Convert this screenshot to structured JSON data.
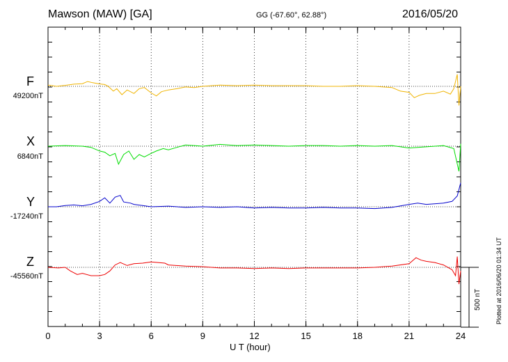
{
  "header": {
    "station": "Mawson (MAW)  [GA]",
    "coords": "GG (-67.60°,  62.88°)",
    "date": "2016/05/20"
  },
  "plotted_note": "Plotted at 2016/06/20 01:34 UT",
  "scale_note": "500 nT",
  "chart_data": {
    "type": "line",
    "xlabel": "U T (hour)",
    "xlim": [
      0,
      24
    ],
    "x_ticks": [
      0,
      3,
      6,
      9,
      12,
      15,
      18,
      21,
      24
    ],
    "x_tick_labels": [
      "0",
      "3",
      "6",
      "9",
      "12",
      "15",
      "18",
      "21",
      "24"
    ],
    "scale_bar_nT": 500,
    "series": [
      {
        "name": "F",
        "baseline_label": "49200nT",
        "color": "#f0b400",
        "values": [
          [
            0,
            10
          ],
          [
            0.5,
            0
          ],
          [
            1,
            8
          ],
          [
            1.5,
            18
          ],
          [
            2,
            22
          ],
          [
            2.3,
            40
          ],
          [
            2.6,
            30
          ],
          [
            3,
            20
          ],
          [
            3.3,
            15
          ],
          [
            3.5,
            0
          ],
          [
            3.8,
            -40
          ],
          [
            4,
            -20
          ],
          [
            4.3,
            -70
          ],
          [
            4.6,
            -30
          ],
          [
            5,
            -60
          ],
          [
            5.3,
            -20
          ],
          [
            5.6,
            -10
          ],
          [
            6,
            -55
          ],
          [
            6.3,
            -80
          ],
          [
            6.6,
            -45
          ],
          [
            7,
            -30
          ],
          [
            7.5,
            -20
          ],
          [
            8,
            -5
          ],
          [
            8.5,
            -10
          ],
          [
            9,
            0
          ],
          [
            10,
            10
          ],
          [
            11,
            5
          ],
          [
            12,
            10
          ],
          [
            13,
            5
          ],
          [
            14,
            5
          ],
          [
            15,
            5
          ],
          [
            16,
            0
          ],
          [
            17,
            0
          ],
          [
            18,
            5
          ],
          [
            19,
            0
          ],
          [
            20,
            -10
          ],
          [
            20.5,
            -40
          ],
          [
            21,
            -50
          ],
          [
            21.3,
            -95
          ],
          [
            21.6,
            -75
          ],
          [
            22,
            -60
          ],
          [
            22.5,
            -60
          ],
          [
            23,
            -40
          ],
          [
            23.4,
            -65
          ],
          [
            23.6,
            -20
          ],
          [
            23.8,
            100
          ],
          [
            23.9,
            -160
          ],
          [
            24,
            0
          ]
        ]
      },
      {
        "name": "X",
        "baseline_label": "6840nT",
        "color": "#00dd00",
        "values": [
          [
            0,
            0
          ],
          [
            1,
            5
          ],
          [
            2,
            0
          ],
          [
            2.5,
            -10
          ],
          [
            3,
            -40
          ],
          [
            3.3,
            -50
          ],
          [
            3.6,
            -80
          ],
          [
            3.9,
            -60
          ],
          [
            4.1,
            -150
          ],
          [
            4.4,
            -70
          ],
          [
            4.7,
            -40
          ],
          [
            5,
            -110
          ],
          [
            5.3,
            -70
          ],
          [
            5.6,
            -90
          ],
          [
            6,
            -60
          ],
          [
            6.3,
            -40
          ],
          [
            6.7,
            -20
          ],
          [
            7,
            -30
          ],
          [
            7.5,
            -10
          ],
          [
            8,
            10
          ],
          [
            9,
            0
          ],
          [
            10,
            15
          ],
          [
            11,
            5
          ],
          [
            12,
            10
          ],
          [
            13,
            5
          ],
          [
            14,
            0
          ],
          [
            15,
            5
          ],
          [
            16,
            5
          ],
          [
            17,
            0
          ],
          [
            18,
            5
          ],
          [
            19,
            0
          ],
          [
            20,
            5
          ],
          [
            21,
            -15
          ],
          [
            22,
            -5
          ],
          [
            23,
            5
          ],
          [
            23.6,
            -20
          ],
          [
            23.9,
            -210
          ],
          [
            24,
            20
          ]
        ]
      },
      {
        "name": "Y",
        "baseline_label": "-17240nT",
        "color": "#0000cc",
        "values": [
          [
            0,
            0
          ],
          [
            0.5,
            0
          ],
          [
            1,
            10
          ],
          [
            1.5,
            15
          ],
          [
            2,
            8
          ],
          [
            2.5,
            20
          ],
          [
            3,
            45
          ],
          [
            3.3,
            75
          ],
          [
            3.6,
            30
          ],
          [
            3.9,
            80
          ],
          [
            4.2,
            95
          ],
          [
            4.4,
            40
          ],
          [
            4.8,
            30
          ],
          [
            5,
            20
          ],
          [
            5.5,
            10
          ],
          [
            6,
            0
          ],
          [
            7,
            5
          ],
          [
            8,
            -5
          ],
          [
            9,
            0
          ],
          [
            10,
            -5
          ],
          [
            11,
            0
          ],
          [
            12,
            -10
          ],
          [
            13,
            -5
          ],
          [
            14,
            -10
          ],
          [
            15,
            -10
          ],
          [
            16,
            -5
          ],
          [
            17,
            -10
          ],
          [
            18,
            -10
          ],
          [
            19,
            -15
          ],
          [
            20,
            -5
          ],
          [
            21,
            20
          ],
          [
            21.5,
            30
          ],
          [
            22,
            20
          ],
          [
            23,
            30
          ],
          [
            23.5,
            45
          ],
          [
            23.8,
            90
          ],
          [
            24,
            200
          ]
        ]
      },
      {
        "name": "Z",
        "baseline_label": "-45560nT",
        "color": "#ee0000",
        "values": [
          [
            0,
            0
          ],
          [
            0.6,
            -5
          ],
          [
            1,
            0
          ],
          [
            1.3,
            -30
          ],
          [
            1.7,
            -60
          ],
          [
            2,
            -50
          ],
          [
            2.5,
            -70
          ],
          [
            3,
            -70
          ],
          [
            3.3,
            -60
          ],
          [
            3.6,
            -30
          ],
          [
            3.9,
            20
          ],
          [
            4.2,
            40
          ],
          [
            4.6,
            15
          ],
          [
            5,
            30
          ],
          [
            5.5,
            35
          ],
          [
            6,
            45
          ],
          [
            6.4,
            40
          ],
          [
            6.8,
            35
          ],
          [
            7,
            20
          ],
          [
            8,
            10
          ],
          [
            9,
            5
          ],
          [
            10,
            -5
          ],
          [
            11,
            -5
          ],
          [
            12,
            -10
          ],
          [
            13,
            -5
          ],
          [
            14,
            -10
          ],
          [
            15,
            -5
          ],
          [
            16,
            -5
          ],
          [
            17,
            -5
          ],
          [
            18,
            -5
          ],
          [
            19,
            0
          ],
          [
            20,
            10
          ],
          [
            21,
            30
          ],
          [
            21.4,
            80
          ],
          [
            21.7,
            60
          ],
          [
            22,
            50
          ],
          [
            22.5,
            40
          ],
          [
            23,
            20
          ],
          [
            23.5,
            -20
          ],
          [
            23.7,
            -70
          ],
          [
            23.8,
            90
          ],
          [
            23.9,
            -140
          ],
          [
            24,
            -30
          ]
        ]
      }
    ]
  }
}
